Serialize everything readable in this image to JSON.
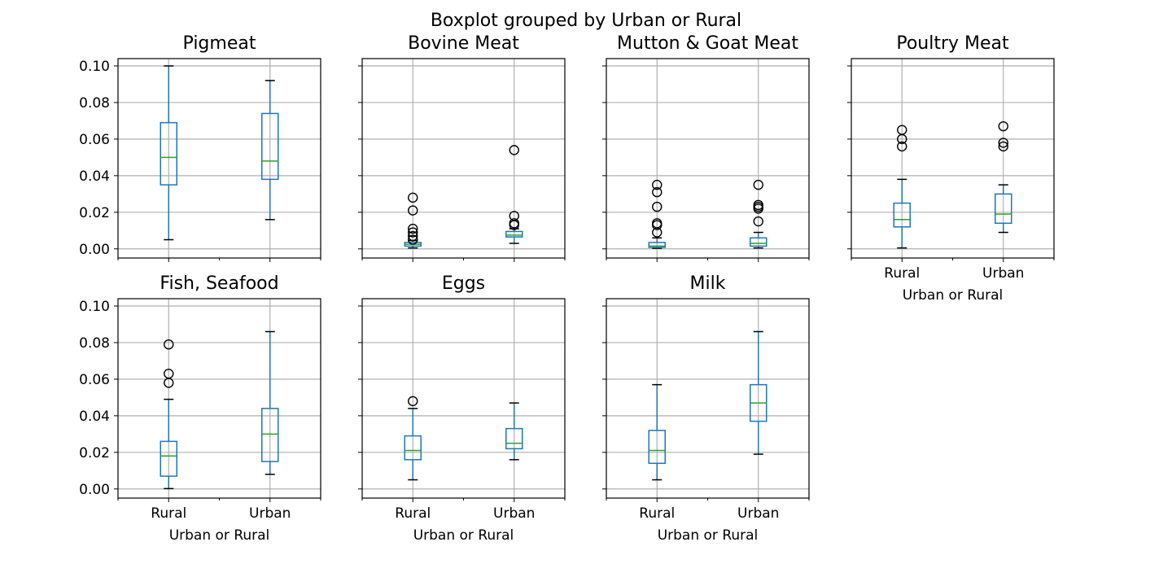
{
  "chart_data": {
    "type": "boxplot",
    "title": "Boxplot grouped by Urban or Rural",
    "categories": [
      "Rural",
      "Urban"
    ],
    "xlabel": "Urban or Rural",
    "ylim": [
      -0.005,
      0.104
    ],
    "yticks": [
      "0.00",
      "0.02",
      "0.04",
      "0.06",
      "0.08",
      "0.10"
    ],
    "ytick_values": [
      0,
      0.02,
      0.04,
      0.06,
      0.08,
      0.1
    ],
    "grid": true,
    "colors": {
      "box": "#1f77b4",
      "median": "#2ca02c",
      "whisker": "#1f77b4",
      "cap": "#000000",
      "grid": "#b0b0b0"
    },
    "panels": [
      {
        "title": "Pigmeat",
        "groups": [
          {
            "category": "Rural",
            "whislo": 0.005,
            "q1": 0.035,
            "median": 0.05,
            "q3": 0.069,
            "whishi": 0.1,
            "fliers": []
          },
          {
            "category": "Urban",
            "whislo": 0.016,
            "q1": 0.038,
            "median": 0.048,
            "q3": 0.074,
            "whishi": 0.092,
            "fliers": []
          }
        ]
      },
      {
        "title": "Bovine Meat",
        "groups": [
          {
            "category": "Rural",
            "whislo": 0.0005,
            "q1": 0.0015,
            "median": 0.0025,
            "q3": 0.0035,
            "whishi": 0.0045,
            "fliers": [
              0.005,
              0.007,
              0.009,
              0.011,
              0.021,
              0.028
            ]
          },
          {
            "category": "Urban",
            "whislo": 0.003,
            "q1": 0.0065,
            "median": 0.0075,
            "q3": 0.0095,
            "whishi": 0.011,
            "fliers": [
              0.013,
              0.014,
              0.018,
              0.054
            ]
          }
        ]
      },
      {
        "title": "Mutton & Goat Meat",
        "groups": [
          {
            "category": "Rural",
            "whislo": 0.0003,
            "q1": 0.0008,
            "median": 0.0015,
            "q3": 0.0035,
            "whishi": 0.006,
            "fliers": [
              0.009,
              0.013,
              0.014,
              0.023,
              0.031,
              0.035
            ]
          },
          {
            "category": "Urban",
            "whislo": 0.0005,
            "q1": 0.0015,
            "median": 0.003,
            "q3": 0.006,
            "whishi": 0.009,
            "fliers": [
              0.015,
              0.022,
              0.023,
              0.024,
              0.035
            ]
          }
        ]
      },
      {
        "title": "Poultry Meat",
        "groups": [
          {
            "category": "Rural",
            "whislo": 0.0005,
            "q1": 0.012,
            "median": 0.016,
            "q3": 0.025,
            "whishi": 0.038,
            "fliers": [
              0.056,
              0.06,
              0.065
            ]
          },
          {
            "category": "Urban",
            "whislo": 0.009,
            "q1": 0.014,
            "median": 0.019,
            "q3": 0.03,
            "whishi": 0.035,
            "fliers": [
              0.056,
              0.058,
              0.067
            ]
          }
        ]
      },
      {
        "title": "Fish, Seafood",
        "groups": [
          {
            "category": "Rural",
            "whislo": 0.0002,
            "q1": 0.007,
            "median": 0.018,
            "q3": 0.026,
            "whishi": 0.049,
            "fliers": [
              0.058,
              0.063,
              0.079
            ]
          },
          {
            "category": "Urban",
            "whislo": 0.008,
            "q1": 0.015,
            "median": 0.03,
            "q3": 0.044,
            "whishi": 0.086,
            "fliers": []
          }
        ]
      },
      {
        "title": "Eggs",
        "groups": [
          {
            "category": "Rural",
            "whislo": 0.005,
            "q1": 0.016,
            "median": 0.021,
            "q3": 0.029,
            "whishi": 0.044,
            "fliers": [
              0.048
            ]
          },
          {
            "category": "Urban",
            "whislo": 0.016,
            "q1": 0.022,
            "median": 0.025,
            "q3": 0.033,
            "whishi": 0.047,
            "fliers": []
          }
        ]
      },
      {
        "title": "Milk",
        "groups": [
          {
            "category": "Rural",
            "whislo": 0.005,
            "q1": 0.014,
            "median": 0.021,
            "q3": 0.032,
            "whishi": 0.057,
            "fliers": []
          },
          {
            "category": "Urban",
            "whislo": 0.019,
            "q1": 0.037,
            "median": 0.047,
            "q3": 0.057,
            "whishi": 0.086,
            "fliers": []
          }
        ]
      }
    ]
  }
}
